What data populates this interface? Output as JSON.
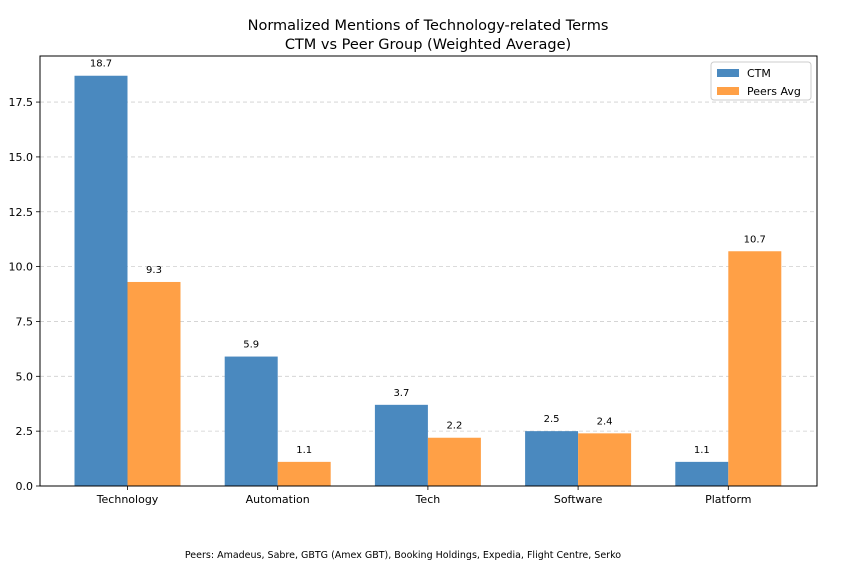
{
  "chart_data": {
    "type": "bar",
    "title": "Normalized Mentions of Technology-related Terms",
    "subtitle": "CTM vs Peer Group (Weighted Average)",
    "xlabel": "",
    "ylabel": "",
    "categories": [
      "Technology",
      "Automation",
      "Tech",
      "Software",
      "Platform"
    ],
    "series": [
      {
        "name": "CTM",
        "values": [
          18.7,
          5.9,
          3.7,
          2.5,
          1.1
        ],
        "color": "#4a89bf"
      },
      {
        "name": "Peers Avg",
        "values": [
          9.3,
          1.1,
          2.2,
          2.4,
          10.7
        ],
        "color": "#ffa046"
      }
    ],
    "ylim": [
      0,
      19.6
    ],
    "yticks": [
      0.0,
      2.5,
      5.0,
      7.5,
      10.0,
      12.5,
      15.0,
      17.5
    ],
    "ytick_labels": [
      "0.0",
      "2.5",
      "5.0",
      "7.5",
      "10.0",
      "12.5",
      "15.0",
      "17.5"
    ],
    "grid": "y-dashed",
    "legend_position": "top-right",
    "data_labels": true
  },
  "footnote": "Peers: Amadeus, Sabre, GBTG (Amex GBT), Booking Holdings, Expedia, Flight Centre, Serko"
}
